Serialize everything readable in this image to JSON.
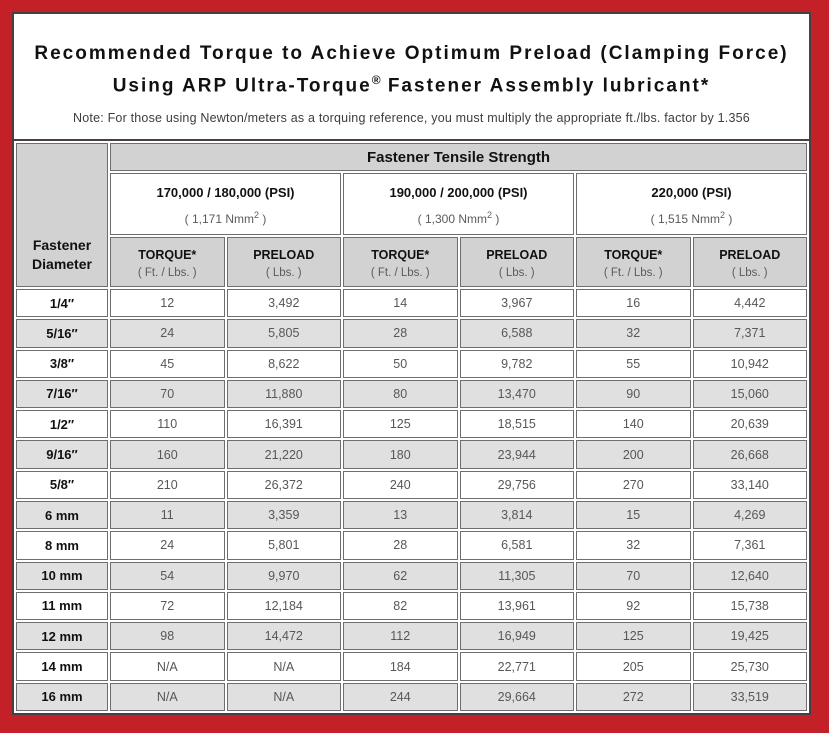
{
  "title": {
    "line1": "Recommended Torque to Achieve Optimum Preload (Clamping Force)",
    "line2_pre": "Using ARP Ultra-Torque",
    "line2_sup": "®",
    "line2_post": " Fastener Assembly lubricant*",
    "note": "Note: For those using Newton/meters as a torquing reference, you must multiply the appropriate ft./lbs. factor by 1.356"
  },
  "colors": {
    "outer_border": "#c32027",
    "inner_border": "#473f40",
    "header_gray": "#d2d2d2",
    "alt_row_gray": "#e0e0e0"
  },
  "table": {
    "corner_line1": "Fastener",
    "corner_line2": "Diameter",
    "tensile_header": "Fastener Tensile Strength",
    "strength_groups": [
      {
        "psi": "170,000 / 180,000 (PSI)",
        "nmm_prefix": "( 1,171 Nmm",
        "nmm_sup": "2",
        "nmm_suffix": " )"
      },
      {
        "psi": "190,000 / 200,000 (PSI)",
        "nmm_prefix": "( 1,300 Nmm",
        "nmm_sup": "2",
        "nmm_suffix": " )"
      },
      {
        "psi": "220,000 (PSI)",
        "nmm_prefix": "( 1,515 Nmm",
        "nmm_sup": "2",
        "nmm_suffix": " )"
      }
    ],
    "torque_label": "TORQUE*",
    "torque_sub": "( Ft. / Lbs. )",
    "preload_label": "PRELOAD",
    "preload_sub": "( Lbs. )",
    "rows": [
      {
        "d": "1/4″",
        "v": [
          "12",
          "3,492",
          "14",
          "3,967",
          "16",
          "4,442"
        ]
      },
      {
        "d": "5/16″",
        "v": [
          "24",
          "5,805",
          "28",
          "6,588",
          "32",
          "7,371"
        ]
      },
      {
        "d": "3/8″",
        "v": [
          "45",
          "8,622",
          "50",
          "9,782",
          "55",
          "10,942"
        ]
      },
      {
        "d": "7/16″",
        "v": [
          "70",
          "11,880",
          "80",
          "13,470",
          "90",
          "15,060"
        ]
      },
      {
        "d": "1/2″",
        "v": [
          "110",
          "16,391",
          "125",
          "18,515",
          "140",
          "20,639"
        ]
      },
      {
        "d": "9/16″",
        "v": [
          "160",
          "21,220",
          "180",
          "23,944",
          "200",
          "26,668"
        ]
      },
      {
        "d": "5/8″",
        "v": [
          "210",
          "26,372",
          "240",
          "29,756",
          "270",
          "33,140"
        ]
      },
      {
        "d": "6 mm",
        "v": [
          "11",
          "3,359",
          "13",
          "3,814",
          "15",
          "4,269"
        ]
      },
      {
        "d": "8 mm",
        "v": [
          "24",
          "5,801",
          "28",
          "6,581",
          "32",
          "7,361"
        ]
      },
      {
        "d": "10 mm",
        "v": [
          "54",
          "9,970",
          "62",
          "11,305",
          "70",
          "12,640"
        ]
      },
      {
        "d": "11 mm",
        "v": [
          "72",
          "12,184",
          "82",
          "13,961",
          "92",
          "15,738"
        ]
      },
      {
        "d": "12 mm",
        "v": [
          "98",
          "14,472",
          "112",
          "16,949",
          "125",
          "19,425"
        ]
      },
      {
        "d": "14 mm",
        "v": [
          "N/A",
          "N/A",
          "184",
          "22,771",
          "205",
          "25,730"
        ]
      },
      {
        "d": "16 mm",
        "v": [
          "N/A",
          "N/A",
          "244",
          "29,664",
          "272",
          "33,519"
        ]
      }
    ]
  }
}
